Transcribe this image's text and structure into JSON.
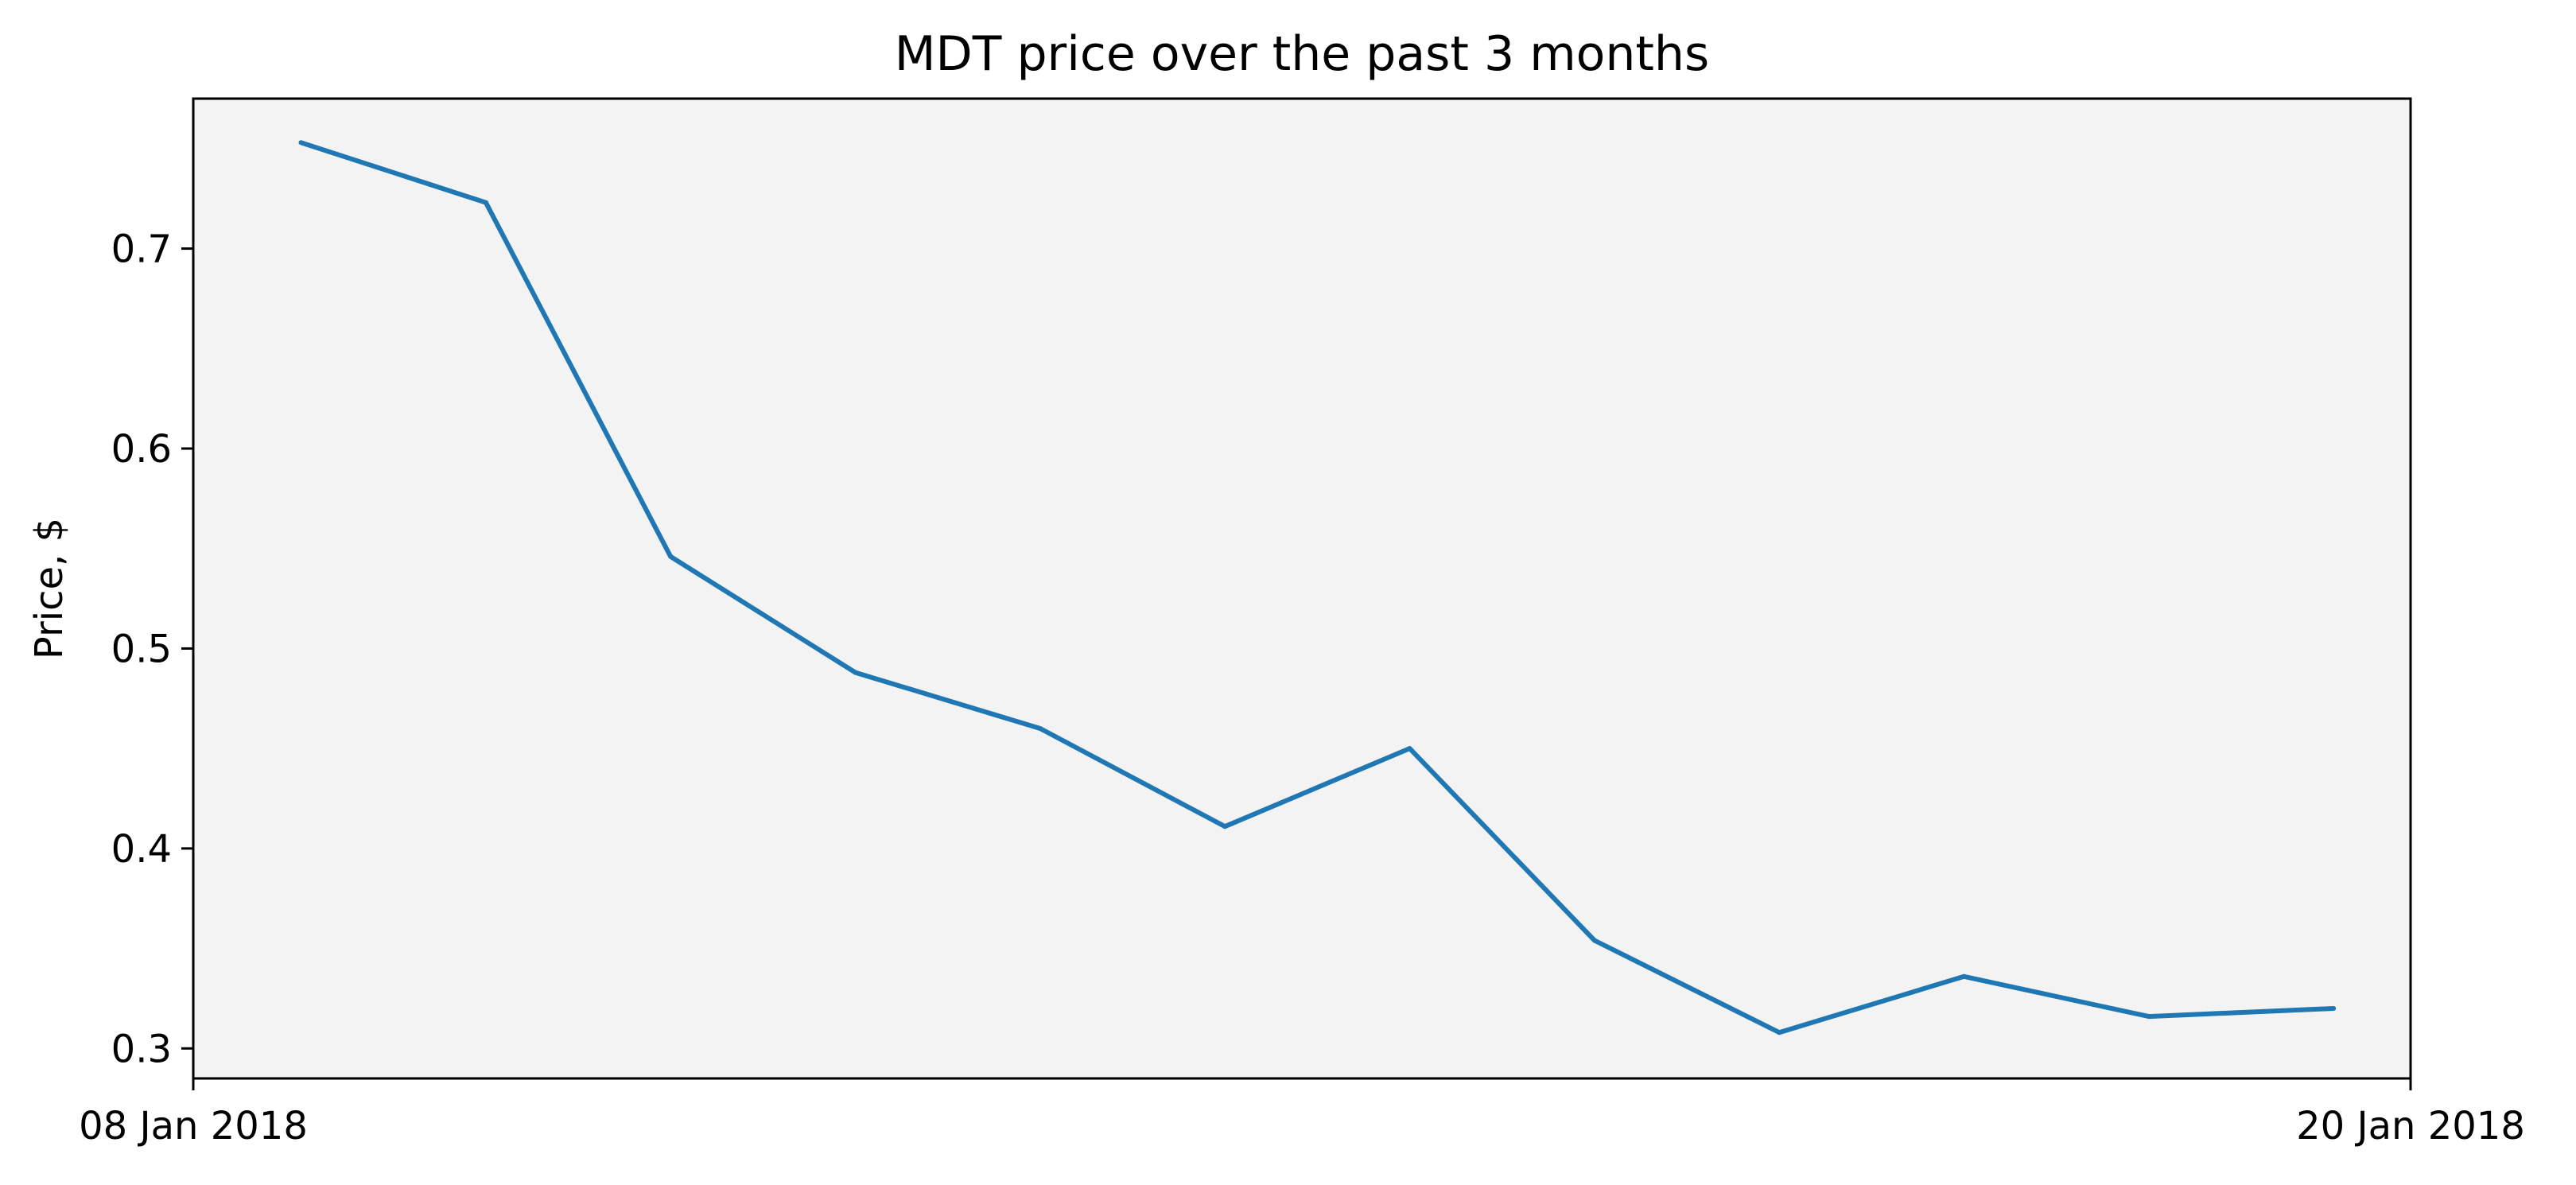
{
  "chart_data": {
    "type": "line",
    "title": "MDT price over the past 3 months",
    "xlabel": "",
    "ylabel": "Price, $",
    "x_tick_labels": [
      "08 Jan 2018",
      "20 Jan 2018"
    ],
    "y_tick_labels": [
      "0.3",
      "0.4",
      "0.5",
      "0.6",
      "0.7"
    ],
    "y_ticks": [
      0.3,
      0.4,
      0.5,
      0.6,
      0.7
    ],
    "xlim": [
      "2018-01-08",
      "2018-01-20"
    ],
    "ylim": [
      0.285,
      0.775
    ],
    "grid": false,
    "colors": {
      "line": "#1f77b4",
      "plot_background": "#f3f3f3",
      "axes": "#000000"
    },
    "x": [
      "2018-01-08 14:00",
      "2018-01-09 14:00",
      "2018-01-10 14:00",
      "2018-01-11 14:00",
      "2018-01-12 14:00",
      "2018-01-13 14:00",
      "2018-01-14 14:00",
      "2018-01-15 14:00",
      "2018-01-16 14:00",
      "2018-01-17 14:00",
      "2018-01-18 14:00",
      "2018-01-19 14:00"
    ],
    "series": [
      {
        "values": [
          0.753,
          0.723,
          0.546,
          0.488,
          0.46,
          0.411,
          0.45,
          0.354,
          0.308,
          0.336,
          0.316,
          0.32
        ]
      }
    ]
  }
}
